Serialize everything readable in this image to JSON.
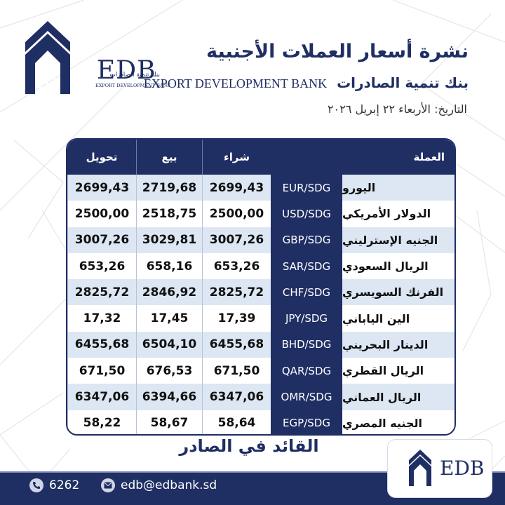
{
  "header": {
    "title": "نشرة أسعار العملات الأجنبية",
    "bank_name_ar": "بنك تنمية الصادرات",
    "bank_name_en": "EXPORT DEVELOPMENT BANK",
    "date": "التاريخ: الأربعاء ٢٢ إبريل ٢٠٢٦"
  },
  "logo": {
    "name": "EDB",
    "name_ar": "بنك تنمية الصادرات",
    "name_en": "EXPORT DEVELOPMENT BANK"
  },
  "table": {
    "headers": {
      "currency": "العملة",
      "buy": "شراء",
      "sell": "بيع",
      "transfer": "تحويل"
    },
    "rows": [
      {
        "name": "اليورو",
        "pair": "EUR/SDG",
        "buy": "2699,43",
        "sell": "2719,68",
        "transfer": "2699,43"
      },
      {
        "name": "الدولار الأمريكي",
        "pair": "USD/SDG",
        "buy": "2500,00",
        "sell": "2518,75",
        "transfer": "2500,00"
      },
      {
        "name": "الجنيه الإسترليني",
        "pair": "GBP/SDG",
        "buy": "3007,26",
        "sell": "3029,81",
        "transfer": "3007,26"
      },
      {
        "name": "الريال السعودي",
        "pair": "SAR/SDG",
        "buy": "653,26",
        "sell": "658,16",
        "transfer": "653,26"
      },
      {
        "name": "الفرنك السويسري",
        "pair": "CHF/SDG",
        "buy": "2825,72",
        "sell": "2846,92",
        "transfer": "2825,72"
      },
      {
        "name": "الين الياباني",
        "pair": "JPY/SDG",
        "buy": "17,39",
        "sell": "17,45",
        "transfer": "17,32"
      },
      {
        "name": "الدينار البحريني",
        "pair": "BHD/SDG",
        "buy": "6455,68",
        "sell": "6504,10",
        "transfer": "6455,68"
      },
      {
        "name": "الريال القطري",
        "pair": "QAR/SDG",
        "buy": "671,50",
        "sell": "676,53",
        "transfer": "671,50"
      },
      {
        "name": "الريال العماني",
        "pair": "OMR/SDG",
        "buy": "6347,06",
        "sell": "6394,66",
        "transfer": "6347,06"
      },
      {
        "name": "الجنيه المصري",
        "pair": "EGP/SDG",
        "buy": "58,64",
        "sell": "58,67",
        "transfer": "58,22"
      }
    ]
  },
  "tagline": "القائد في الصادر",
  "footer": {
    "phone": "6262",
    "email": "edb@edbank.sd",
    "phone_icon": "phone-icon",
    "email_icon": "email-icon",
    "badge": "EDB"
  },
  "colors": {
    "navy": "#1f2e63",
    "row_alt": "#dde7f3",
    "white": "#ffffff"
  }
}
